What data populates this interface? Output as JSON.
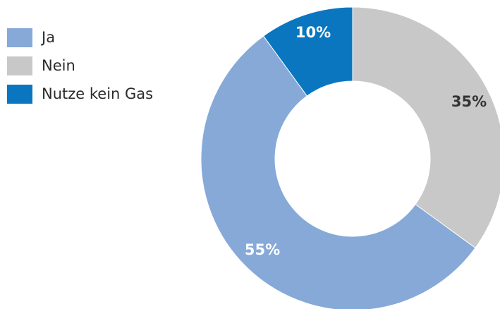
{
  "chart_data": {
    "type": "pie",
    "variant": "donut",
    "title": "",
    "categories": [
      "Ja",
      "Nein",
      "Nutze kein Gas"
    ],
    "values": [
      55,
      35,
      10
    ],
    "labels": [
      "55%",
      "35%",
      "10%"
    ],
    "colors": [
      "#86a9d8",
      "#c8c8c8",
      "#0a76bf"
    ],
    "label_colors": [
      "#ffffff",
      "#333333",
      "#ffffff"
    ],
    "legend_position": "left"
  },
  "legend": {
    "items": [
      {
        "label": "Ja",
        "color": "#86a9d8"
      },
      {
        "label": "Nein",
        "color": "#c8c8c8"
      },
      {
        "label": "Nutze kein Gas",
        "color": "#0a76bf"
      }
    ]
  }
}
